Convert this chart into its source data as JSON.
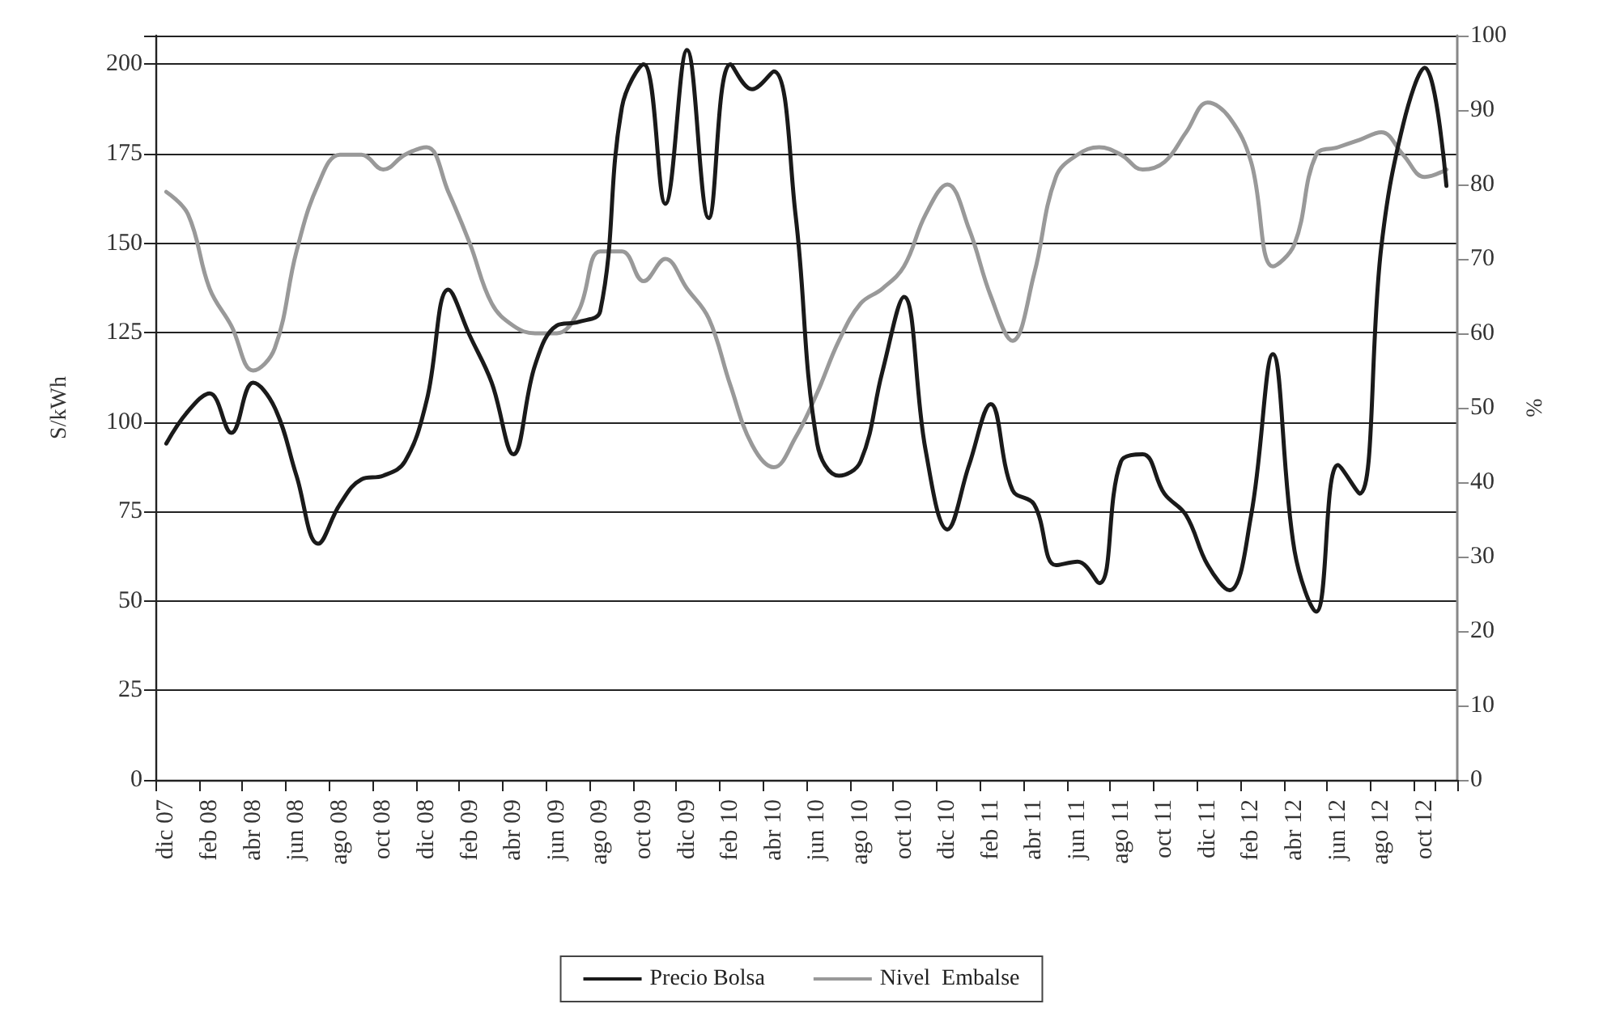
{
  "chart_data": {
    "type": "line",
    "ylabel": "S/kWh",
    "y2label": "%",
    "categories": [
      "dic 07",
      null,
      "feb 08",
      null,
      "abr 08",
      null,
      "jun 08",
      null,
      "ago 08",
      null,
      "oct 08",
      null,
      "dic 08",
      null,
      "feb 09",
      null,
      "abr 09",
      null,
      "jun 09",
      null,
      "ago 09",
      null,
      "oct 09",
      null,
      "dic 09",
      null,
      "feb 10",
      null,
      "abr 10",
      null,
      "jun 10",
      null,
      "ago 10",
      null,
      "oct 10",
      null,
      "dic 10",
      null,
      "feb 11",
      null,
      "abr 11",
      null,
      "jun 11",
      null,
      "ago 11",
      null,
      "oct 11",
      null,
      "dic 11",
      null,
      "feb 12",
      null,
      "abr 12",
      null,
      "jun 12",
      null,
      "ago 12",
      null,
      "oct 12",
      null
    ],
    "series": [
      {
        "name": "Precio Bolsa",
        "color": "#1a1a1a",
        "values": [
          94,
          103,
          108,
          97,
          111,
          104,
          85,
          66,
          77,
          84,
          85,
          89,
          106,
          137,
          124,
          111,
          91,
          116,
          127,
          128,
          131,
          188,
          200,
          161,
          204,
          157,
          200,
          193,
          198,
          158,
          94,
          85,
          89,
          114,
          135,
          92,
          70,
          88,
          105,
          81,
          77,
          60,
          61,
          55,
          89,
          91,
          80,
          74,
          60,
          53,
          74,
          119,
          64,
          47,
          88,
          80,
          149,
          183,
          199,
          166
        ]
      },
      {
        "name": "Nivel  Embalse",
        "color": "#999999",
        "axis": "y2",
        "values": [
          79,
          76,
          66,
          61,
          55,
          58,
          71,
          80,
          84,
          84,
          82,
          84,
          85,
          79,
          72,
          64,
          61,
          60,
          60,
          63,
          71,
          71,
          67,
          70,
          66,
          62,
          53,
          45,
          42,
          46,
          52,
          59,
          64,
          66,
          69,
          76,
          80,
          74,
          65,
          59,
          68,
          81,
          84,
          85,
          84,
          82,
          83,
          87,
          91,
          89,
          83,
          69,
          72,
          84,
          85,
          86,
          87,
          84,
          81,
          82
        ]
      }
    ],
    "ylim": [
      0,
      208
    ],
    "yticks": [
      0,
      25,
      50,
      75,
      100,
      125,
      150,
      175,
      200
    ],
    "y2lim": [
      0,
      100
    ],
    "y2ticks": [
      0,
      10,
      20,
      30,
      40,
      50,
      60,
      70,
      80,
      90,
      100
    ],
    "grid": "y",
    "legend": "bottom"
  }
}
